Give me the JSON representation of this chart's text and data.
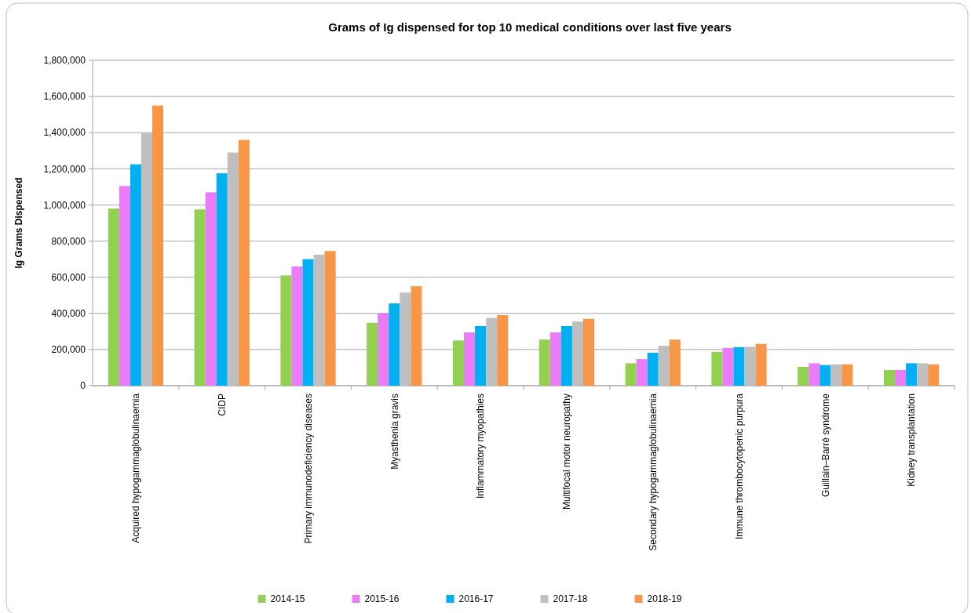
{
  "chart_data": {
    "type": "bar",
    "title": "Grams of Ig dispensed for top 10 medical conditions over last five years",
    "ylabel": "Ig Grams Dispensed",
    "categories": [
      "Acquired hypogammaglobulinaemia",
      "CIDP",
      "Primary immunodeficiency diseases",
      "Myasthenia gravis",
      "Inflammatory myopathies",
      "Multifocal motor neuropathy",
      "Secondary hypogammaglobulinaemia",
      "Immune thrombocytopenic purpura",
      "Guillain–Barré syndrome",
      "Kidney transplantation"
    ],
    "series": [
      {
        "name": "2014-15",
        "color": "#92d050",
        "values": [
          980000,
          975000,
          610000,
          348000,
          250000,
          255000,
          124000,
          187000,
          104000,
          87000
        ]
      },
      {
        "name": "2015-16",
        "color": "#e87df7",
        "values": [
          1105000,
          1070000,
          660000,
          400000,
          295000,
          295000,
          147000,
          208000,
          124000,
          87000
        ]
      },
      {
        "name": "2016-17",
        "color": "#00b0f0",
        "values": [
          1225000,
          1175000,
          700000,
          455000,
          330000,
          330000,
          182000,
          213000,
          114000,
          124000
        ]
      },
      {
        "name": "2017-18",
        "color": "#bfbfbf",
        "values": [
          1400000,
          1290000,
          725000,
          515000,
          375000,
          355000,
          221000,
          215000,
          118000,
          124000
        ]
      },
      {
        "name": "2018-19",
        "color": "#f79646",
        "values": [
          1550000,
          1360000,
          745000,
          550000,
          390000,
          370000,
          255000,
          231000,
          118000,
          118000
        ]
      }
    ],
    "ylim": [
      0,
      1800000
    ],
    "yticks": [
      {
        "value": 0,
        "label": "0"
      },
      {
        "value": 200000,
        "label": "200,000"
      },
      {
        "value": 400000,
        "label": "400,000"
      },
      {
        "value": 600000,
        "label": "600,000"
      },
      {
        "value": 800000,
        "label": "800,000"
      },
      {
        "value": 1000000,
        "label": "1,000,000"
      },
      {
        "value": 1200000,
        "label": "1,200,000"
      },
      {
        "value": 1400000,
        "label": "1,400,000"
      },
      {
        "value": 1600000,
        "label": "1,600,000"
      },
      {
        "value": 1800000,
        "label": "1,800,000"
      }
    ],
    "grid": "y",
    "legend": "bottom"
  }
}
